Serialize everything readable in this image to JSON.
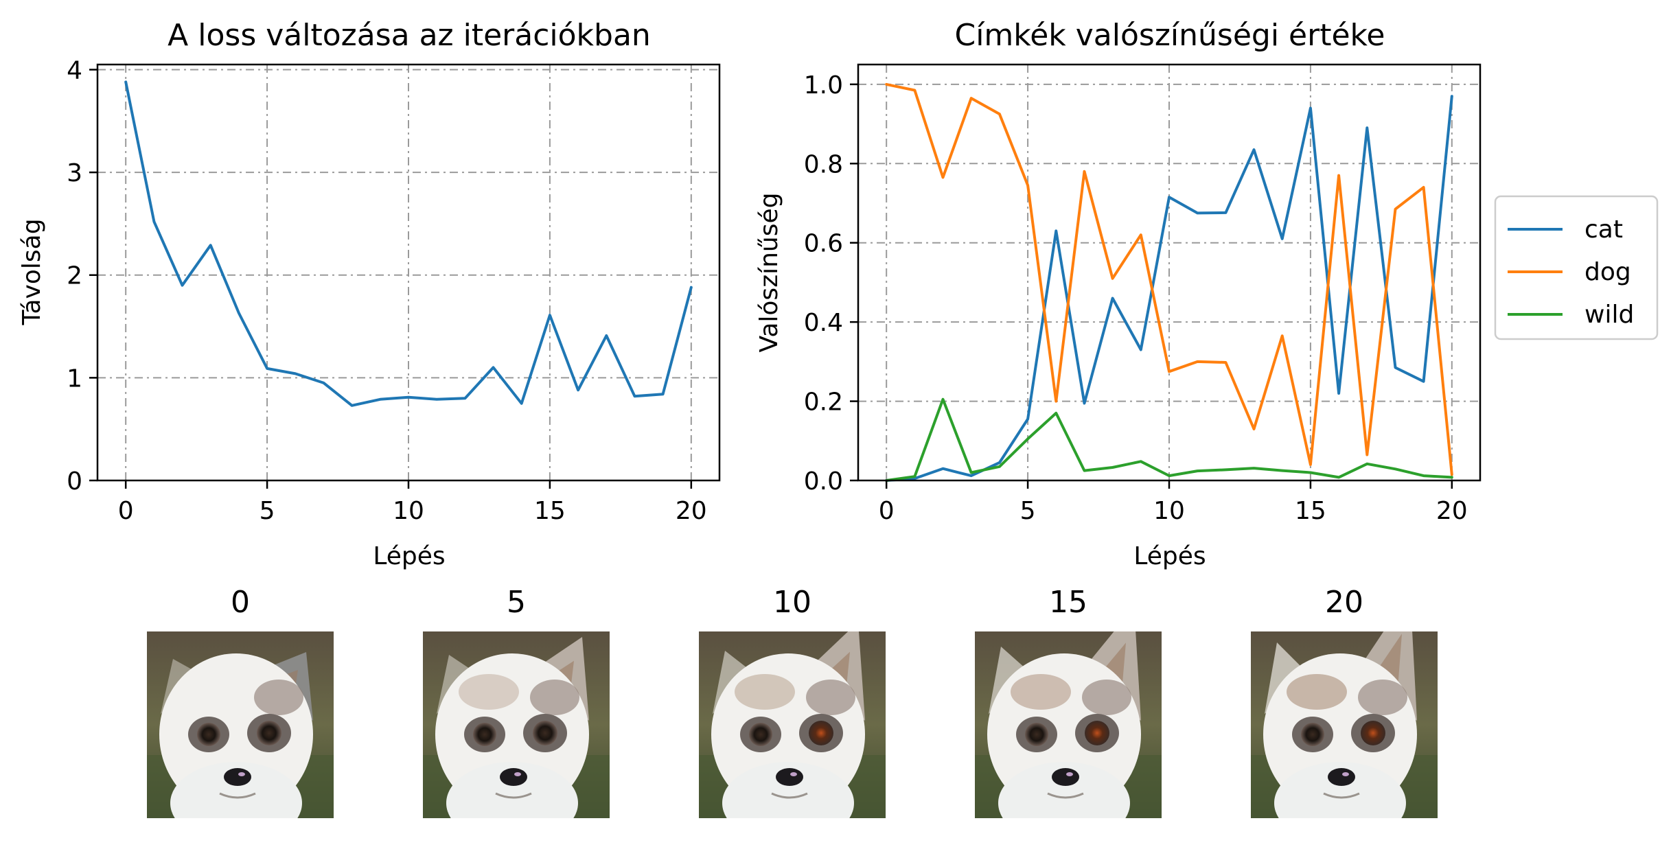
{
  "chart_data": [
    {
      "type": "line",
      "title": "A loss változása az iterációkban",
      "xlabel": "Lépés",
      "ylabel": "Távolság",
      "xlim": [
        -1,
        21
      ],
      "ylim": [
        0,
        4.05
      ],
      "xticks": [
        0,
        5,
        10,
        15,
        20
      ],
      "yticks": [
        0,
        1,
        2,
        3,
        4
      ],
      "xtick_labels": [
        "0",
        "5",
        "10",
        "15",
        "20"
      ],
      "ytick_labels": [
        "0",
        "1",
        "2",
        "3",
        "4"
      ],
      "grid": true,
      "x": [
        0,
        1,
        2,
        3,
        4,
        5,
        6,
        7,
        8,
        9,
        10,
        11,
        12,
        13,
        14,
        15,
        16,
        17,
        18,
        19,
        20
      ],
      "series": [
        {
          "color": "#1f77b4",
          "values": [
            3.88,
            2.52,
            1.9,
            2.29,
            1.63,
            1.09,
            1.04,
            0.95,
            0.73,
            0.79,
            0.81,
            0.79,
            0.8,
            1.1,
            0.75,
            1.61,
            0.88,
            1.41,
            0.82,
            0.84,
            1.88
          ]
        }
      ]
    },
    {
      "type": "line",
      "title": "Címkék valószínűségi értéke",
      "xlabel": "Lépés",
      "ylabel": "Valószínűség",
      "xlim": [
        -1,
        21
      ],
      "ylim": [
        0,
        1.05
      ],
      "xticks": [
        0,
        5,
        10,
        15,
        20
      ],
      "yticks": [
        0,
        0.2,
        0.4,
        0.6,
        0.8,
        1.0
      ],
      "xtick_labels": [
        "0",
        "5",
        "10",
        "15",
        "20"
      ],
      "ytick_labels": [
        "0.0",
        "0.2",
        "0.4",
        "0.6",
        "0.8",
        "1.0"
      ],
      "grid": true,
      "legend": "right",
      "x": [
        0,
        1,
        2,
        3,
        4,
        5,
        6,
        7,
        8,
        9,
        10,
        11,
        12,
        13,
        14,
        15,
        16,
        17,
        18,
        19,
        20
      ],
      "series": [
        {
          "name": "cat",
          "color": "#1f77b4",
          "values": [
            0.0,
            0.005,
            0.03,
            0.012,
            0.045,
            0.155,
            0.63,
            0.195,
            0.46,
            0.33,
            0.715,
            0.675,
            0.676,
            0.835,
            0.61,
            0.94,
            0.22,
            0.89,
            0.285,
            0.25,
            0.97
          ]
        },
        {
          "name": "dog",
          "color": "#ff7f0e",
          "values": [
            1.0,
            0.985,
            0.765,
            0.965,
            0.925,
            0.745,
            0.2,
            0.78,
            0.51,
            0.62,
            0.275,
            0.3,
            0.298,
            0.13,
            0.365,
            0.04,
            0.77,
            0.065,
            0.685,
            0.74,
            0.015
          ]
        },
        {
          "name": "wild",
          "color": "#2ca02c",
          "values": [
            0.0,
            0.01,
            0.205,
            0.02,
            0.035,
            0.105,
            0.17,
            0.025,
            0.033,
            0.048,
            0.012,
            0.024,
            0.027,
            0.031,
            0.025,
            0.02,
            0.008,
            0.042,
            0.029,
            0.012,
            0.008
          ]
        }
      ]
    }
  ],
  "thumbnails": [
    {
      "label": "0"
    },
    {
      "label": "5"
    },
    {
      "label": "10"
    },
    {
      "label": "15"
    },
    {
      "label": "20"
    }
  ]
}
